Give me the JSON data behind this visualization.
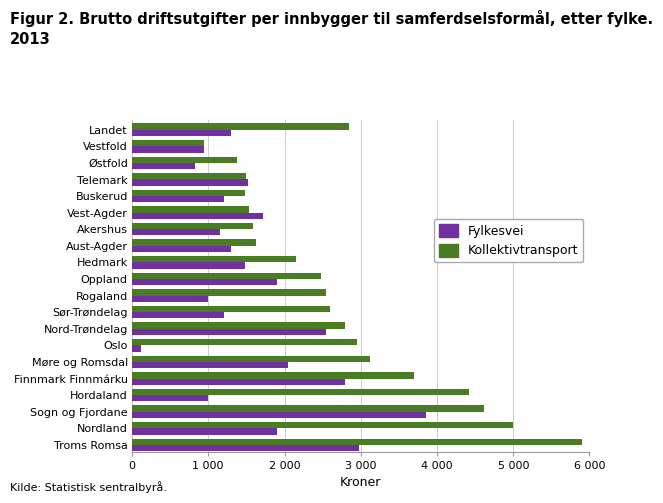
{
  "title": "Figur 2. Brutto driftsutgifter per innbygger til samferdselsformål, etter fylke.\n2013",
  "xlabel": "Kroner",
  "source": "Kilde: Statistisk sentralbyrå.",
  "fylkesvei_color": "#7030A0",
  "kollektiv_color": "#4a7c23",
  "background_color": "#ffffff",
  "grid_color": "#cccccc",
  "categories": [
    "Landet",
    "Vestfold",
    "Østfold",
    "Telemark",
    "Buskerud",
    "Vest-Agder",
    "Akershus",
    "Aust-Agder",
    "Hedmark",
    "Oppland",
    "Rogaland",
    "Sør-Trøndelag",
    "Nord-Trøndelag",
    "Oslo",
    "Møre og Romsdal",
    "Finnmark Finnmárku",
    "Hordaland",
    "Sogn og Fjordane",
    "Nordland",
    "Troms Romsa"
  ],
  "fylkesvei": [
    1300,
    940,
    820,
    1520,
    1200,
    1720,
    1150,
    1300,
    1480,
    1900,
    1000,
    1200,
    2550,
    120,
    2050,
    2800,
    1000,
    3850,
    1900,
    2980
  ],
  "kollektiv": [
    2850,
    950,
    1380,
    1500,
    1480,
    1540,
    1590,
    1620,
    2150,
    2480,
    2550,
    2600,
    2800,
    2950,
    3120,
    3700,
    4420,
    4620,
    5000,
    5900
  ],
  "xlim": [
    0,
    6000
  ],
  "xticks": [
    0,
    1000,
    2000,
    3000,
    4000,
    5000,
    6000
  ],
  "xticklabels": [
    "0",
    "1 000",
    "2 000",
    "3 000",
    "4 000",
    "5 000",
    "6 000"
  ],
  "legend_labels": [
    "Fylkesvei",
    "Kollektivtransport"
  ],
  "title_fontsize": 10.5,
  "label_fontsize": 9,
  "tick_fontsize": 8,
  "legend_fontsize": 9,
  "source_fontsize": 8
}
